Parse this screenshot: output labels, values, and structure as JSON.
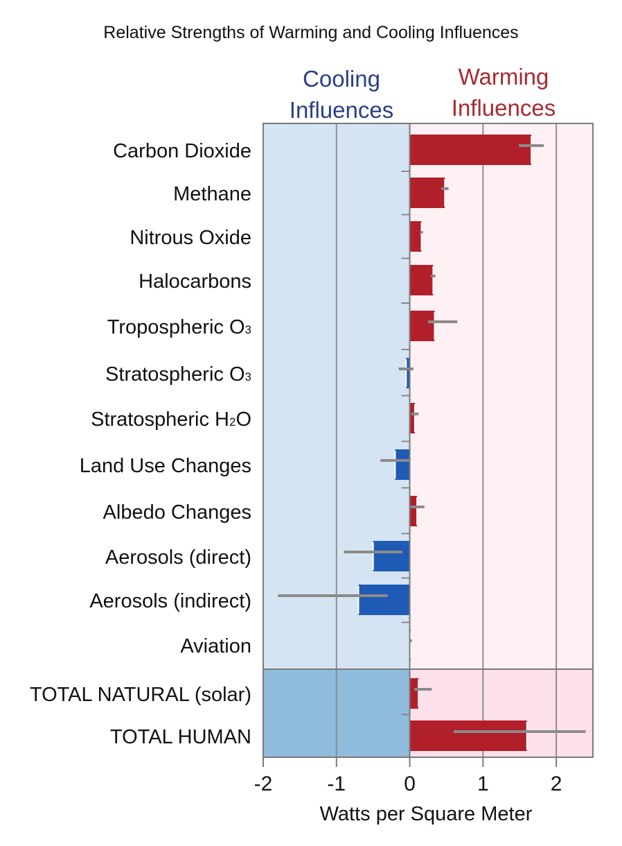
{
  "colors": {
    "cooling_bg": "#d5e4f2",
    "cooling_bg_total": "#8fbcdc",
    "warming_bg": "#fff0f4",
    "warming_bg_total": "#fde0ea",
    "warming_bar": "#b11f2b",
    "cooling_bar": "#1f5ab5",
    "error_bar": "#8a8a8a",
    "cooling_text": "#2a3f84",
    "warming_text": "#a82a2f"
  },
  "chart_data": {
    "type": "bar",
    "orientation": "horizontal",
    "title": "Relative Strengths of Warming and Cooling Influences",
    "cooling_heading": [
      "Cooling",
      "Influences"
    ],
    "warming_heading": [
      "Warming",
      "Influences"
    ],
    "xlabel": "Watts per Square Meter",
    "xlim": [
      -2,
      2.5
    ],
    "xticks": [
      -2,
      -1,
      0,
      1,
      2
    ],
    "xtick_labels": [
      "-2",
      "-1",
      "0",
      "1",
      "2"
    ],
    "grid": true,
    "categories": [
      {
        "label": "Carbon Dioxide",
        "sub": "",
        "value": 1.66,
        "low": 1.49,
        "high": 1.83,
        "group": "components"
      },
      {
        "label": "Methane",
        "sub": "",
        "value": 0.48,
        "low": 0.43,
        "high": 0.53,
        "group": "components"
      },
      {
        "label": "Nitrous Oxide",
        "sub": "",
        "value": 0.16,
        "low": 0.14,
        "high": 0.18,
        "group": "components"
      },
      {
        "label": "Halocarbons",
        "sub": "",
        "value": 0.32,
        "low": 0.29,
        "high": 0.35,
        "group": "components"
      },
      {
        "label": "Tropospheric O",
        "sub": "3",
        "value": 0.34,
        "low": 0.25,
        "high": 0.65,
        "group": "components"
      },
      {
        "label": "Stratospheric O",
        "sub": "3",
        "value": -0.05,
        "low": -0.15,
        "high": 0.05,
        "group": "components"
      },
      {
        "label": "Stratospheric H",
        "sub": "2",
        "suffix": "O",
        "value": 0.07,
        "low": 0.02,
        "high": 0.12,
        "group": "components"
      },
      {
        "label": "Land Use Changes",
        "sub": "",
        "value": -0.2,
        "low": -0.4,
        "high": 0.0,
        "group": "components"
      },
      {
        "label": "Albedo Changes",
        "sub": "",
        "value": 0.1,
        "low": 0.0,
        "high": 0.2,
        "group": "components"
      },
      {
        "label": "Aerosols (direct)",
        "sub": "",
        "value": -0.5,
        "low": -0.9,
        "high": -0.1,
        "group": "components"
      },
      {
        "label": "Aerosols (indirect)",
        "sub": "",
        "value": -0.7,
        "low": -1.8,
        "high": -0.3,
        "group": "components"
      },
      {
        "label": "Aviation",
        "sub": "",
        "value": 0.01,
        "low": 0.003,
        "high": 0.03,
        "group": "components"
      },
      {
        "label": "TOTAL NATURAL  (solar)",
        "sub": "",
        "value": 0.12,
        "low": 0.06,
        "high": 0.3,
        "group": "totals"
      },
      {
        "label": "TOTAL HUMAN",
        "sub": "",
        "value": 1.6,
        "low": 0.6,
        "high": 2.4,
        "group": "totals"
      }
    ]
  }
}
